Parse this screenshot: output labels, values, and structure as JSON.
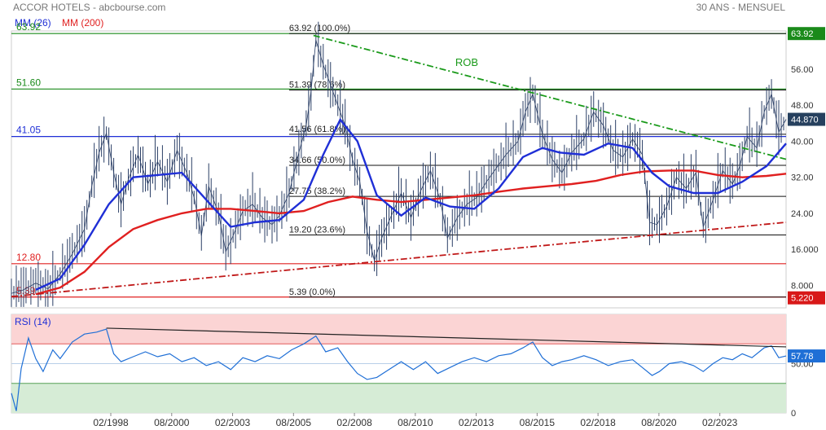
{
  "header": {
    "title": "ACCOR HOTELS - abcbourse.com",
    "period": "30 ANS - MENSUEL"
  },
  "legend": {
    "ma_short": {
      "label": "MM (26)",
      "color": "#1f2fd6"
    },
    "ma_long": {
      "label": "MM (200)",
      "color": "#e02020"
    }
  },
  "chart_data": [
    {
      "type": "line",
      "title": "ACCOR HOTELS - abcbourse.com",
      "price_range": [
        3.0,
        64.5
      ],
      "y_ticks": [
        "56.00",
        "48.00",
        "40.00",
        "32.00",
        "24.00",
        "16.000",
        "8.000"
      ],
      "y_tick_values": [
        56,
        48,
        40,
        32,
        24,
        16,
        8
      ],
      "x_ticks": [
        "02/1998",
        "08/2000",
        "02/2003",
        "08/2005",
        "02/2008",
        "08/2010",
        "02/2013",
        "08/2015",
        "02/2018",
        "08/2020",
        "02/2023"
      ],
      "x_tick_values": [
        1998.08,
        2000.58,
        2003.08,
        2005.58,
        2008.08,
        2010.58,
        2013.08,
        2015.58,
        2018.08,
        2020.58,
        2023.08
      ],
      "x_range": [
        1994.0,
        2025.8
      ],
      "price_points": [
        [
          1994.0,
          6.2
        ],
        [
          1994.5,
          7.0
        ],
        [
          1995.0,
          8.5
        ],
        [
          1995.5,
          7.2
        ],
        [
          1996.0,
          10.5
        ],
        [
          1996.5,
          15.0
        ],
        [
          1997.0,
          20.5
        ],
        [
          1997.3,
          30.0
        ],
        [
          1997.6,
          37.5
        ],
        [
          1997.9,
          41.8
        ],
        [
          1998.2,
          33.0
        ],
        [
          1998.5,
          26.0
        ],
        [
          1998.8,
          31.5
        ],
        [
          1999.2,
          37.0
        ],
        [
          1999.6,
          30.5
        ],
        [
          2000.0,
          35.5
        ],
        [
          2000.4,
          31.0
        ],
        [
          2000.8,
          38.0
        ],
        [
          2001.2,
          33.0
        ],
        [
          2001.5,
          27.5
        ],
        [
          2001.8,
          19.0
        ],
        [
          2002.1,
          30.0
        ],
        [
          2002.5,
          24.0
        ],
        [
          2002.8,
          15.5
        ],
        [
          2003.1,
          19.0
        ],
        [
          2003.5,
          24.5
        ],
        [
          2003.9,
          26.0
        ],
        [
          2004.3,
          23.0
        ],
        [
          2004.7,
          21.5
        ],
        [
          2005.0,
          23.5
        ],
        [
          2005.4,
          28.5
        ],
        [
          2005.8,
          37.5
        ],
        [
          2006.1,
          43.5
        ],
        [
          2006.3,
          51.0
        ],
        [
          2006.5,
          62.5
        ],
        [
          2006.8,
          57.0
        ],
        [
          2007.1,
          52.5
        ],
        [
          2007.4,
          48.0
        ],
        [
          2007.7,
          43.5
        ],
        [
          2008.0,
          36.0
        ],
        [
          2008.3,
          31.0
        ],
        [
          2008.6,
          20.0
        ],
        [
          2008.9,
          13.5
        ],
        [
          2009.2,
          18.5
        ],
        [
          2009.6,
          23.5
        ],
        [
          2010.0,
          28.5
        ],
        [
          2010.4,
          23.0
        ],
        [
          2010.8,
          29.0
        ],
        [
          2011.2,
          33.5
        ],
        [
          2011.6,
          27.0
        ],
        [
          2011.9,
          18.5
        ],
        [
          2012.3,
          23.0
        ],
        [
          2012.7,
          26.0
        ],
        [
          2013.1,
          27.5
        ],
        [
          2013.5,
          31.0
        ],
        [
          2013.9,
          34.0
        ],
        [
          2014.3,
          37.0
        ],
        [
          2014.8,
          40.0
        ],
        [
          2015.1,
          46.5
        ],
        [
          2015.4,
          50.5
        ],
        [
          2015.8,
          41.5
        ],
        [
          2016.2,
          36.0
        ],
        [
          2016.6,
          33.0
        ],
        [
          2017.0,
          37.5
        ],
        [
          2017.5,
          40.5
        ],
        [
          2017.9,
          46.5
        ],
        [
          2018.3,
          43.5
        ],
        [
          2018.7,
          38.0
        ],
        [
          2019.1,
          36.5
        ],
        [
          2019.5,
          40.5
        ],
        [
          2019.9,
          37.0
        ],
        [
          2020.2,
          22.0
        ],
        [
          2020.5,
          21.5
        ],
        [
          2020.9,
          25.5
        ],
        [
          2021.3,
          32.0
        ],
        [
          2021.7,
          29.5
        ],
        [
          2022.1,
          33.0
        ],
        [
          2022.4,
          21.0
        ],
        [
          2022.8,
          27.0
        ],
        [
          2023.2,
          33.5
        ],
        [
          2023.6,
          30.5
        ],
        [
          2023.9,
          34.5
        ],
        [
          2024.2,
          41.0
        ],
        [
          2024.6,
          38.5
        ],
        [
          2024.9,
          46.5
        ],
        [
          2025.2,
          50.5
        ],
        [
          2025.5,
          42.0
        ],
        [
          2025.8,
          44.87
        ]
      ],
      "ma_short_points": [
        [
          1995.0,
          7.0
        ],
        [
          1996.0,
          9.5
        ],
        [
          1997.0,
          17.0
        ],
        [
          1998.0,
          26.0
        ],
        [
          1999.0,
          32.0
        ],
        [
          2000.0,
          32.5
        ],
        [
          2001.0,
          33.0
        ],
        [
          2002.0,
          27.0
        ],
        [
          2003.0,
          21.0
        ],
        [
          2004.0,
          22.0
        ],
        [
          2005.0,
          22.5
        ],
        [
          2006.0,
          27.0
        ],
        [
          2006.8,
          37.0
        ],
        [
          2007.5,
          44.8
        ],
        [
          2008.2,
          40.0
        ],
        [
          2009.0,
          28.0
        ],
        [
          2010.0,
          23.5
        ],
        [
          2011.0,
          27.5
        ],
        [
          2012.0,
          25.5
        ],
        [
          2013.0,
          25.0
        ],
        [
          2014.0,
          29.5
        ],
        [
          2015.0,
          36.5
        ],
        [
          2015.8,
          38.5
        ],
        [
          2016.5,
          37.5
        ],
        [
          2017.5,
          37.0
        ],
        [
          2018.5,
          39.5
        ],
        [
          2019.5,
          38.5
        ],
        [
          2020.3,
          33.0
        ],
        [
          2021.0,
          30.0
        ],
        [
          2022.0,
          28.5
        ],
        [
          2023.0,
          28.5
        ],
        [
          2024.0,
          31.0
        ],
        [
          2025.0,
          34.5
        ],
        [
          2025.8,
          39.5
        ]
      ],
      "ma_long_points": [
        [
          1995.0,
          6.0
        ],
        [
          1996.0,
          7.5
        ],
        [
          1997.0,
          11.0
        ],
        [
          1998.0,
          16.5
        ],
        [
          1999.0,
          20.5
        ],
        [
          2000.0,
          22.5
        ],
        [
          2001.0,
          24.0
        ],
        [
          2002.0,
          25.0
        ],
        [
          2003.0,
          25.0
        ],
        [
          2004.0,
          24.5
        ],
        [
          2005.0,
          24.0
        ],
        [
          2006.0,
          24.5
        ],
        [
          2007.0,
          26.5
        ],
        [
          2008.0,
          27.7
        ],
        [
          2009.0,
          27.0
        ],
        [
          2010.0,
          26.5
        ],
        [
          2011.0,
          27.0
        ],
        [
          2012.0,
          27.5
        ],
        [
          2013.0,
          28.0
        ],
        [
          2014.0,
          28.8
        ],
        [
          2015.0,
          29.5
        ],
        [
          2016.0,
          30.0
        ],
        [
          2017.0,
          30.5
        ],
        [
          2018.0,
          31.2
        ],
        [
          2019.0,
          32.5
        ],
        [
          2020.0,
          33.3
        ],
        [
          2021.0,
          33.5
        ],
        [
          2022.0,
          33.5
        ],
        [
          2023.0,
          32.5
        ],
        [
          2024.0,
          32.0
        ],
        [
          2025.0,
          32.3
        ],
        [
          2025.8,
          32.8
        ]
      ],
      "fibonacci": [
        {
          "label": "63.92  (100.0%)",
          "value": 63.92
        },
        {
          "label": "51.39  (78.6%)",
          "value": 51.39
        },
        {
          "label": "41.56  (61.8%)",
          "value": 41.56
        },
        {
          "label": "34.66  (50.0%)",
          "value": 34.66
        },
        {
          "label": "27.75  (38.2%)",
          "value": 27.75
        },
        {
          "label": "19.20  (23.6%)",
          "value": 19.2
        },
        {
          "label": "5.39  (0.0%)",
          "value": 5.39
        }
      ],
      "horizontal_levels": [
        {
          "label": "63.92",
          "value": 63.92,
          "color": "#1a8a1a"
        },
        {
          "label": "51.60",
          "value": 51.6,
          "color": "#1a8a1a"
        },
        {
          "label": "41.05",
          "value": 41.05,
          "color": "#1f2fd6"
        },
        {
          "label": "12.80",
          "value": 12.8,
          "color": "#e02020"
        },
        {
          "label": "5.39",
          "value": 5.39,
          "color": "#e02020"
        }
      ],
      "trendlines": [
        {
          "name": "ROB",
          "from": [
            2006.4,
            63.5
          ],
          "to": [
            2025.8,
            36.0
          ],
          "color": "#1a9a1a"
        },
        {
          "name": "",
          "from": [
            1994.0,
            5.5
          ],
          "to": [
            2025.8,
            22.0
          ],
          "color": "#c01818"
        }
      ],
      "badges": [
        {
          "label": "63.92",
          "value": 63.92,
          "color": "#1a8a1a"
        },
        {
          "label": "44.870",
          "value": 44.87,
          "color": "#26405e"
        },
        {
          "label": "5.220",
          "value": 5.22,
          "color": "#d81818"
        }
      ]
    },
    {
      "type": "line",
      "title": "RSI (14)",
      "y_range": [
        0,
        100
      ],
      "y_ticks": [
        "50.00",
        "0"
      ],
      "y_tick_values": [
        50,
        0
      ],
      "overbought": 70,
      "oversold": 30,
      "rsi_points": [
        [
          1994.0,
          20
        ],
        [
          1994.2,
          2
        ],
        [
          1994.4,
          45
        ],
        [
          1994.7,
          76
        ],
        [
          1995.0,
          55
        ],
        [
          1995.3,
          42
        ],
        [
          1995.7,
          64
        ],
        [
          1996.0,
          55
        ],
        [
          1996.5,
          72
        ],
        [
          1997.0,
          80
        ],
        [
          1997.5,
          82
        ],
        [
          1997.9,
          85
        ],
        [
          1998.2,
          60
        ],
        [
          1998.5,
          52
        ],
        [
          1999.0,
          57
        ],
        [
          1999.5,
          62
        ],
        [
          2000.0,
          57
        ],
        [
          2000.5,
          60
        ],
        [
          2001.0,
          52
        ],
        [
          2001.5,
          56
        ],
        [
          2002.0,
          48
        ],
        [
          2002.5,
          52
        ],
        [
          2003.0,
          44
        ],
        [
          2003.5,
          56
        ],
        [
          2004.0,
          52
        ],
        [
          2004.5,
          58
        ],
        [
          2005.0,
          55
        ],
        [
          2005.5,
          64
        ],
        [
          2006.0,
          70
        ],
        [
          2006.5,
          78
        ],
        [
          2006.9,
          62
        ],
        [
          2007.4,
          66
        ],
        [
          2007.8,
          52
        ],
        [
          2008.2,
          40
        ],
        [
          2008.6,
          34
        ],
        [
          2009.0,
          36
        ],
        [
          2009.5,
          44
        ],
        [
          2010.0,
          52
        ],
        [
          2010.5,
          44
        ],
        [
          2011.0,
          52
        ],
        [
          2011.5,
          40
        ],
        [
          2012.0,
          46
        ],
        [
          2012.5,
          52
        ],
        [
          2013.0,
          56
        ],
        [
          2013.5,
          52
        ],
        [
          2014.0,
          58
        ],
        [
          2014.5,
          60
        ],
        [
          2015.0,
          66
        ],
        [
          2015.4,
          72
        ],
        [
          2015.8,
          56
        ],
        [
          2016.2,
          48
        ],
        [
          2016.6,
          52
        ],
        [
          2017.0,
          54
        ],
        [
          2017.5,
          58
        ],
        [
          2018.0,
          54
        ],
        [
          2018.5,
          48
        ],
        [
          2019.0,
          52
        ],
        [
          2019.5,
          54
        ],
        [
          2019.9,
          46
        ],
        [
          2020.3,
          38
        ],
        [
          2020.6,
          42
        ],
        [
          2021.0,
          50
        ],
        [
          2021.5,
          52
        ],
        [
          2022.0,
          48
        ],
        [
          2022.4,
          42
        ],
        [
          2022.8,
          50
        ],
        [
          2023.2,
          56
        ],
        [
          2023.6,
          54
        ],
        [
          2024.0,
          60
        ],
        [
          2024.4,
          56
        ],
        [
          2024.9,
          66
        ],
        [
          2025.2,
          68
        ],
        [
          2025.5,
          56
        ],
        [
          2025.8,
          57.78
        ]
      ],
      "trendline": {
        "from": [
          1997.9,
          86
        ],
        "to": [
          2025.8,
          67
        ]
      },
      "badge": {
        "label": "57.78",
        "value": 57.78,
        "color": "#1f6fd6"
      }
    }
  ]
}
